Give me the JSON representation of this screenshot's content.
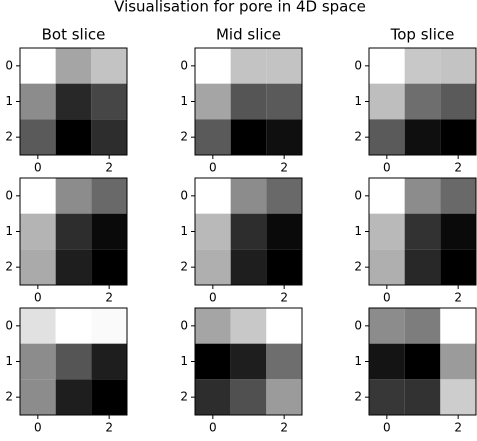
{
  "title": "Visualisation for pore in 4D space",
  "chart_data": [
    {
      "type": "heatmap",
      "title": "Bot slice",
      "cmap": "gray",
      "xlim": [
        -0.5,
        2.5
      ],
      "ylim": [
        2.5,
        -0.5
      ],
      "xticks": [
        0,
        2
      ],
      "yticks": [
        0,
        1,
        2
      ],
      "values": [
        [
          255,
          165,
          195
        ],
        [
          140,
          40,
          70
        ],
        [
          90,
          0,
          45
        ]
      ]
    },
    {
      "type": "heatmap",
      "title": "Mid slice",
      "cmap": "gray",
      "xlim": [
        -0.5,
        2.5
      ],
      "ylim": [
        2.5,
        -0.5
      ],
      "xticks": [
        0,
        2
      ],
      "yticks": [
        0,
        1,
        2
      ],
      "values": [
        [
          255,
          195,
          195
        ],
        [
          165,
          85,
          90
        ],
        [
          90,
          0,
          15
        ]
      ]
    },
    {
      "type": "heatmap",
      "title": "Top slice",
      "cmap": "gray",
      "xlim": [
        -0.5,
        2.5
      ],
      "ylim": [
        2.5,
        -0.5
      ],
      "xticks": [
        0,
        2
      ],
      "yticks": [
        0,
        1,
        2
      ],
      "values": [
        [
          255,
          200,
          195
        ],
        [
          190,
          110,
          90
        ],
        [
          90,
          15,
          0
        ]
      ]
    },
    {
      "type": "heatmap",
      "cmap": "gray",
      "xlim": [
        -0.5,
        2.5
      ],
      "ylim": [
        2.5,
        -0.5
      ],
      "xticks": [
        0,
        2
      ],
      "yticks": [
        0,
        1,
        2
      ],
      "values": [
        [
          255,
          140,
          105
        ],
        [
          180,
          45,
          10
        ],
        [
          170,
          30,
          0
        ]
      ]
    },
    {
      "type": "heatmap",
      "cmap": "gray",
      "xlim": [
        -0.5,
        2.5
      ],
      "ylim": [
        2.5,
        -0.5
      ],
      "xticks": [
        0,
        2
      ],
      "yticks": [
        0,
        1,
        2
      ],
      "values": [
        [
          255,
          140,
          105
        ],
        [
          185,
          45,
          10
        ],
        [
          175,
          30,
          0
        ]
      ]
    },
    {
      "type": "heatmap",
      "cmap": "gray",
      "xlim": [
        -0.5,
        2.5
      ],
      "ylim": [
        2.5,
        -0.5
      ],
      "xticks": [
        0,
        2
      ],
      "yticks": [
        0,
        1,
        2
      ],
      "values": [
        [
          255,
          140,
          105
        ],
        [
          185,
          50,
          10
        ],
        [
          175,
          40,
          0
        ]
      ]
    },
    {
      "type": "heatmap",
      "cmap": "gray",
      "xlim": [
        -0.5,
        2.5
      ],
      "ylim": [
        2.5,
        -0.5
      ],
      "xticks": [
        0,
        2
      ],
      "yticks": [
        0,
        1,
        2
      ],
      "values": [
        [
          225,
          255,
          250
        ],
        [
          140,
          85,
          30
        ],
        [
          140,
          30,
          0
        ]
      ]
    },
    {
      "type": "heatmap",
      "cmap": "gray",
      "xlim": [
        -0.5,
        2.5
      ],
      "ylim": [
        2.5,
        -0.5
      ],
      "xticks": [
        0,
        2
      ],
      "yticks": [
        0,
        1,
        2
      ],
      "values": [
        [
          165,
          200,
          255
        ],
        [
          0,
          30,
          110
        ],
        [
          45,
          80,
          155
        ]
      ]
    },
    {
      "type": "heatmap",
      "cmap": "gray",
      "xlim": [
        -0.5,
        2.5
      ],
      "ylim": [
        2.5,
        -0.5
      ],
      "xticks": [
        0,
        2
      ],
      "yticks": [
        0,
        1,
        2
      ],
      "values": [
        [
          140,
          125,
          255
        ],
        [
          20,
          0,
          155
        ],
        [
          55,
          50,
          205
        ]
      ]
    }
  ]
}
